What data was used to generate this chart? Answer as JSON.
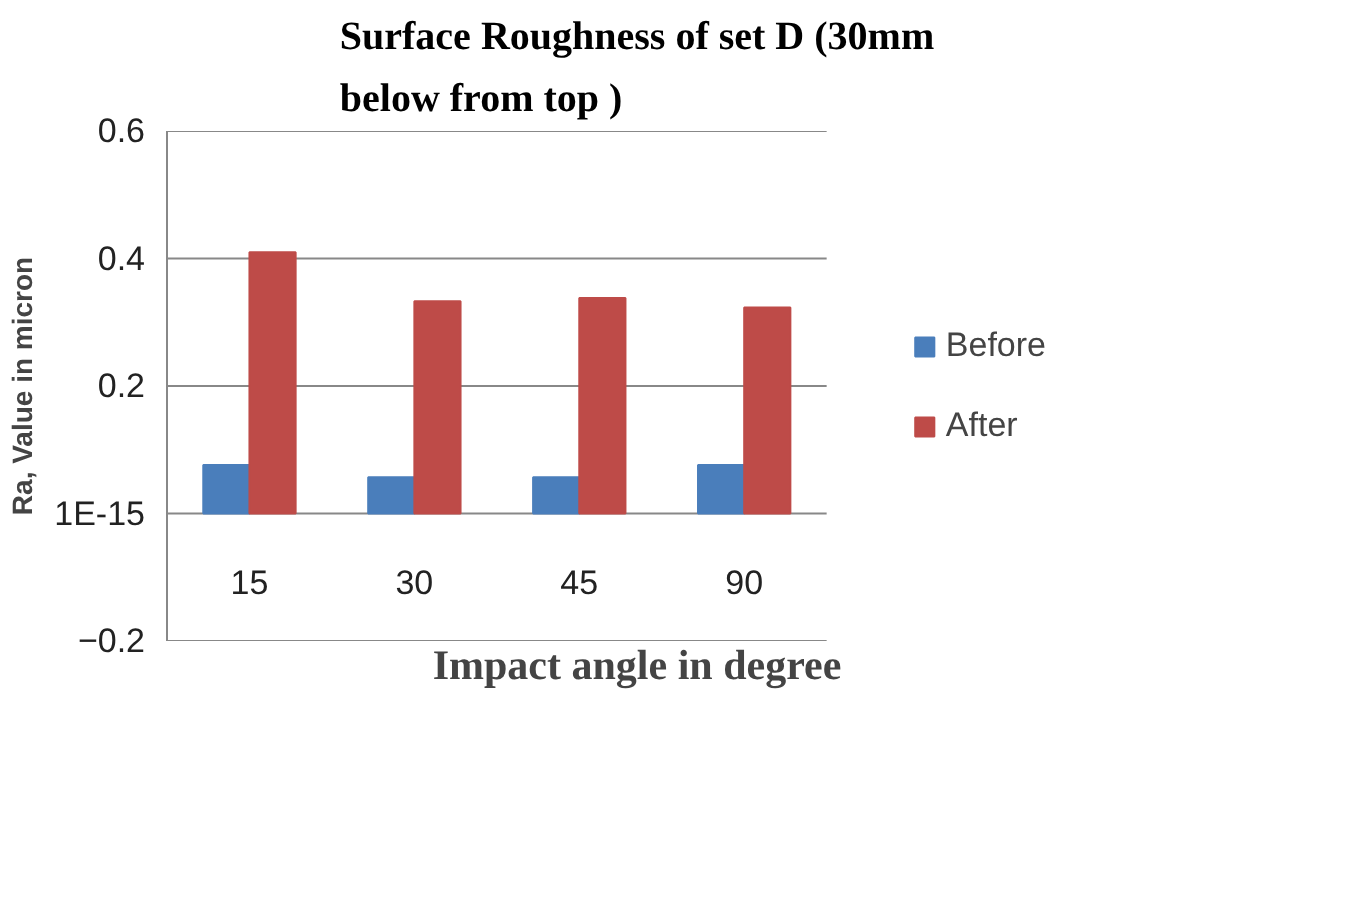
{
  "chart_data": {
    "type": "bar",
    "title": "Surface Roughness of set D (30mm below from top )",
    "xlabel": "Impact angle in degree",
    "ylabel": "Ra, Value in micron",
    "categories": [
      "15",
      "30",
      "45",
      "90"
    ],
    "series": [
      {
        "name": "Before",
        "color": "#4a7ebb",
        "values": [
          0.076,
          0.057,
          0.057,
          0.076
        ]
      },
      {
        "name": "After",
        "color": "#be4b48",
        "values": [
          0.41,
          0.333,
          0.338,
          0.323
        ]
      }
    ],
    "ylim": [
      -0.2,
      0.6
    ],
    "yticks": [
      -0.2,
      {
        "value": 0,
        "label": "1E-15"
      },
      0.2,
      0.4,
      0.6
    ],
    "grid": "y",
    "legend": "right"
  }
}
